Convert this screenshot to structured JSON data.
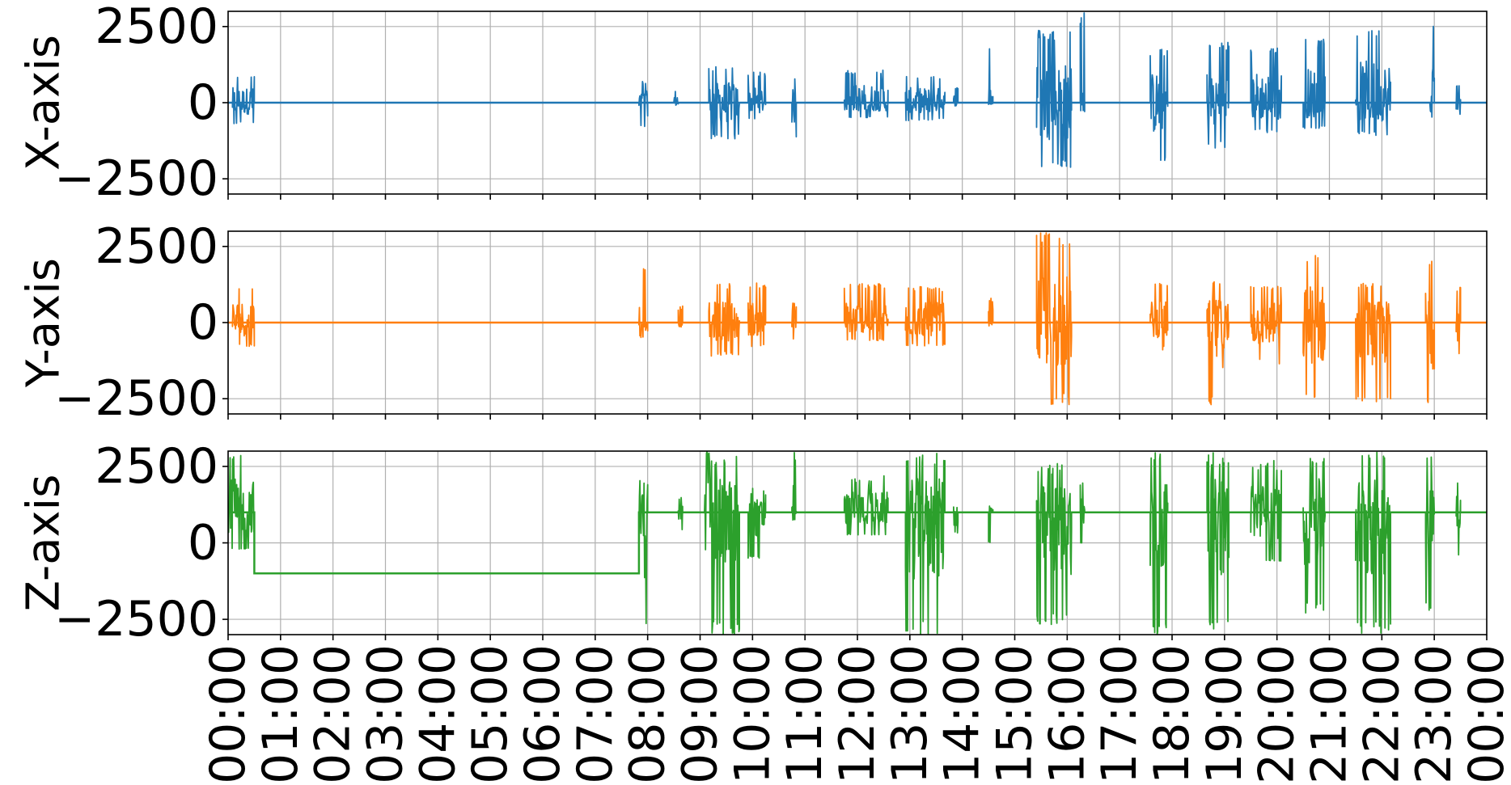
{
  "chart_data": [
    {
      "type": "line",
      "ylabel": "X-axis",
      "color": "#1f77b4",
      "xlim": [
        "00:00",
        "24:00"
      ],
      "ylim": [
        -3000,
        3000
      ],
      "yticks": [
        2500,
        0,
        -2500
      ],
      "ytick_labels": [
        "2500",
        "0",
        "−2500"
      ],
      "grid": true,
      "series": [
        {
          "baseline": 0,
          "segments": [
            {
              "start": "00:05",
              "end": "00:30",
              "min": -700,
              "max": 900
            },
            {
              "start": "07:50",
              "end": "08:00",
              "min": -800,
              "max": 700
            },
            {
              "start": "08:30",
              "end": "08:35",
              "min": -200,
              "max": 800
            },
            {
              "start": "09:10",
              "end": "09:45",
              "min": -1200,
              "max": 1200
            },
            {
              "start": "09:55",
              "end": "10:15",
              "min": -600,
              "max": 1000
            },
            {
              "start": "10:45",
              "end": "10:50",
              "min": -1300,
              "max": 800
            },
            {
              "start": "11:45",
              "end": "12:35",
              "min": -500,
              "max": 1100
            },
            {
              "start": "12:55",
              "end": "13:40",
              "min": -600,
              "max": 900
            },
            {
              "start": "13:50",
              "end": "13:55",
              "min": -200,
              "max": 500
            },
            {
              "start": "14:30",
              "end": "14:35",
              "min": -150,
              "max": 2000
            },
            {
              "start": "15:25",
              "end": "16:05",
              "min": -2200,
              "max": 2400
            },
            {
              "start": "16:15",
              "end": "16:20",
              "min": -300,
              "max": 3000
            },
            {
              "start": "17:35",
              "end": "17:55",
              "min": -1900,
              "max": 1800
            },
            {
              "start": "18:40",
              "end": "19:05",
              "min": -1500,
              "max": 2000
            },
            {
              "start": "19:30",
              "end": "20:05",
              "min": -1000,
              "max": 1900
            },
            {
              "start": "20:30",
              "end": "20:55",
              "min": -900,
              "max": 2100
            },
            {
              "start": "21:30",
              "end": "22:10",
              "min": -1100,
              "max": 2500
            },
            {
              "start": "22:55",
              "end": "23:00",
              "min": -900,
              "max": 2800
            },
            {
              "start": "23:25",
              "end": "23:30",
              "min": -800,
              "max": 600
            }
          ]
        }
      ]
    },
    {
      "type": "line",
      "ylabel": "Y-axis",
      "color": "#ff7f0e",
      "xlim": [
        "00:00",
        "24:00"
      ],
      "ylim": [
        -3000,
        3000
      ],
      "yticks": [
        2500,
        0,
        -2500
      ],
      "ytick_labels": [
        "2500",
        "0",
        "−2500"
      ],
      "grid": true,
      "series": [
        {
          "baseline": 0,
          "segments": [
            {
              "start": "00:05",
              "end": "00:30",
              "min": -800,
              "max": 1300
            },
            {
              "start": "07:50",
              "end": "08:00",
              "min": -500,
              "max": 1800
            },
            {
              "start": "08:35",
              "end": "08:40",
              "min": -150,
              "max": 1000
            },
            {
              "start": "09:10",
              "end": "09:45",
              "min": -1100,
              "max": 1300
            },
            {
              "start": "09:55",
              "end": "10:15",
              "min": -800,
              "max": 1300
            },
            {
              "start": "10:45",
              "end": "10:50",
              "min": -600,
              "max": 1300
            },
            {
              "start": "11:45",
              "end": "12:35",
              "min": -600,
              "max": 1300
            },
            {
              "start": "12:55",
              "end": "13:40",
              "min": -800,
              "max": 1200
            },
            {
              "start": "14:30",
              "end": "14:35",
              "min": -200,
              "max": 800
            },
            {
              "start": "15:25",
              "end": "16:05",
              "min": -2700,
              "max": 3000
            },
            {
              "start": "17:35",
              "end": "17:55",
              "min": -900,
              "max": 1300
            },
            {
              "start": "18:40",
              "end": "19:05",
              "min": -2700,
              "max": 1400
            },
            {
              "start": "19:30",
              "end": "20:05",
              "min": -1400,
              "max": 1200
            },
            {
              "start": "20:30",
              "end": "20:55",
              "min": -2500,
              "max": 2300
            },
            {
              "start": "21:30",
              "end": "22:10",
              "min": -2600,
              "max": 1300
            },
            {
              "start": "22:50",
              "end": "23:00",
              "min": -2800,
              "max": 2200
            },
            {
              "start": "23:25",
              "end": "23:30",
              "min": -1100,
              "max": 1200
            }
          ]
        }
      ]
    },
    {
      "type": "line",
      "ylabel": "Z-axis",
      "color": "#2ca02c",
      "xlim": [
        "00:00",
        "24:00"
      ],
      "ylim": [
        -3000,
        3000
      ],
      "yticks": [
        2500,
        0,
        -2500
      ],
      "ytick_labels": [
        "2500",
        "0",
        "−2500"
      ],
      "grid": true,
      "series": [
        {
          "levels": [
            {
              "start": "00:00",
              "end": "00:30",
              "value": 1000
            },
            {
              "start": "00:30",
              "end": "07:50",
              "value": -1000
            },
            {
              "start": "07:50",
              "end": "24:00",
              "value": 1000
            }
          ],
          "segments": [
            {
              "start": "00:00",
              "end": "00:30",
              "min": -200,
              "max": 3000
            },
            {
              "start": "07:50",
              "end": "08:00",
              "min": -3000,
              "max": 3000
            },
            {
              "start": "08:35",
              "end": "08:40",
              "min": 500,
              "max": 1500
            },
            {
              "start": "09:05",
              "end": "09:45",
              "min": -3000,
              "max": 3000
            },
            {
              "start": "09:55",
              "end": "10:15",
              "min": -500,
              "max": 1800
            },
            {
              "start": "10:45",
              "end": "10:50",
              "min": 300,
              "max": 3000
            },
            {
              "start": "11:45",
              "end": "12:35",
              "min": 300,
              "max": 2200
            },
            {
              "start": "12:55",
              "end": "13:40",
              "min": -3000,
              "max": 3000
            },
            {
              "start": "13:50",
              "end": "13:55",
              "min": -300,
              "max": 1500
            },
            {
              "start": "14:30",
              "end": "14:35",
              "min": -3000,
              "max": 1500
            },
            {
              "start": "15:25",
              "end": "16:05",
              "min": -2700,
              "max": 2600
            },
            {
              "start": "16:15",
              "end": "16:20",
              "min": 0,
              "max": 2000
            },
            {
              "start": "17:35",
              "end": "17:55",
              "min": -3000,
              "max": 3000
            },
            {
              "start": "18:40",
              "end": "19:05",
              "min": -2900,
              "max": 3000
            },
            {
              "start": "19:30",
              "end": "20:05",
              "min": -600,
              "max": 2700
            },
            {
              "start": "20:30",
              "end": "20:55",
              "min": -2300,
              "max": 3000
            },
            {
              "start": "21:30",
              "end": "22:10",
              "min": -3000,
              "max": 3000
            },
            {
              "start": "22:50",
              "end": "23:00",
              "min": -2300,
              "max": 3000
            },
            {
              "start": "23:25",
              "end": "23:30",
              "min": -400,
              "max": 2300
            }
          ]
        }
      ]
    }
  ],
  "x_axis": {
    "tick_labels": [
      "00:00",
      "01:00",
      "02:00",
      "03:00",
      "04:00",
      "05:00",
      "06:00",
      "07:00",
      "08:00",
      "09:00",
      "10:00",
      "11:00",
      "12:00",
      "13:00",
      "14:00",
      "15:00",
      "16:00",
      "17:00",
      "18:00",
      "19:00",
      "20:00",
      "21:00",
      "22:00",
      "23:00",
      "00:00"
    ]
  }
}
